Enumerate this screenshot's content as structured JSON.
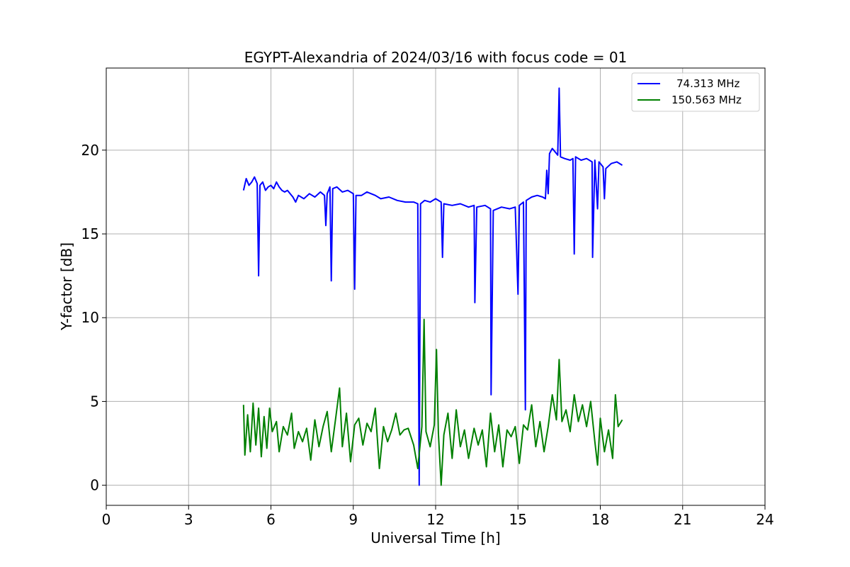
{
  "chart_data": {
    "type": "line",
    "title": "EGYPT-Alexandria of 2024/03/16 with focus code = 01",
    "xlabel": "Universal Time [h]",
    "ylabel": "Y-factor [dB]",
    "xlim": [
      0,
      24
    ],
    "ylim": [
      -1.2,
      24.9
    ],
    "xticks": [
      0,
      3,
      6,
      9,
      12,
      15,
      18,
      21,
      24
    ],
    "yticks": [
      0,
      5,
      10,
      15,
      20
    ],
    "grid": true,
    "legend_position": "top-right",
    "series": [
      {
        "name": "74.313 MHz",
        "color": "#0000ff",
        "points": [
          [
            5.0,
            17.6
          ],
          [
            5.1,
            18.3
          ],
          [
            5.2,
            17.9
          ],
          [
            5.3,
            18.1
          ],
          [
            5.4,
            18.4
          ],
          [
            5.5,
            18.0
          ],
          [
            5.55,
            12.5
          ],
          [
            5.6,
            17.9
          ],
          [
            5.7,
            18.1
          ],
          [
            5.8,
            17.6
          ],
          [
            5.9,
            17.8
          ],
          [
            6.0,
            17.9
          ],
          [
            6.1,
            17.7
          ],
          [
            6.2,
            18.1
          ],
          [
            6.3,
            17.8
          ],
          [
            6.4,
            17.6
          ],
          [
            6.5,
            17.5
          ],
          [
            6.6,
            17.6
          ],
          [
            6.7,
            17.4
          ],
          [
            6.8,
            17.2
          ],
          [
            6.9,
            16.9
          ],
          [
            7.0,
            17.3
          ],
          [
            7.2,
            17.1
          ],
          [
            7.4,
            17.4
          ],
          [
            7.6,
            17.2
          ],
          [
            7.8,
            17.5
          ],
          [
            7.95,
            17.3
          ],
          [
            8.0,
            15.5
          ],
          [
            8.05,
            17.4
          ],
          [
            8.1,
            17.6
          ],
          [
            8.15,
            17.8
          ],
          [
            8.2,
            12.2
          ],
          [
            8.25,
            17.7
          ],
          [
            8.4,
            17.8
          ],
          [
            8.6,
            17.5
          ],
          [
            8.8,
            17.6
          ],
          [
            9.0,
            17.4
          ],
          [
            9.05,
            11.7
          ],
          [
            9.1,
            17.3
          ],
          [
            9.3,
            17.3
          ],
          [
            9.5,
            17.5
          ],
          [
            9.8,
            17.3
          ],
          [
            10.0,
            17.1
          ],
          [
            10.3,
            17.2
          ],
          [
            10.6,
            17.0
          ],
          [
            10.9,
            16.9
          ],
          [
            11.2,
            16.9
          ],
          [
            11.35,
            16.8
          ],
          [
            11.4,
            0.0
          ],
          [
            11.45,
            16.8
          ],
          [
            11.6,
            17.0
          ],
          [
            11.8,
            16.9
          ],
          [
            12.0,
            17.1
          ],
          [
            12.2,
            16.9
          ],
          [
            12.25,
            13.6
          ],
          [
            12.3,
            16.8
          ],
          [
            12.6,
            16.7
          ],
          [
            12.9,
            16.8
          ],
          [
            13.2,
            16.6
          ],
          [
            13.4,
            16.7
          ],
          [
            13.43,
            10.9
          ],
          [
            13.5,
            16.6
          ],
          [
            13.8,
            16.7
          ],
          [
            14.0,
            16.5
          ],
          [
            14.02,
            5.4
          ],
          [
            14.1,
            16.4
          ],
          [
            14.4,
            16.6
          ],
          [
            14.7,
            16.5
          ],
          [
            14.9,
            16.6
          ],
          [
            15.0,
            11.4
          ],
          [
            15.05,
            16.7
          ],
          [
            15.2,
            16.9
          ],
          [
            15.27,
            4.5
          ],
          [
            15.3,
            17.0
          ],
          [
            15.5,
            17.2
          ],
          [
            15.7,
            17.3
          ],
          [
            15.9,
            17.2
          ],
          [
            16.0,
            17.1
          ],
          [
            16.05,
            18.8
          ],
          [
            16.1,
            17.4
          ],
          [
            16.15,
            19.8
          ],
          [
            16.25,
            20.1
          ],
          [
            16.35,
            19.9
          ],
          [
            16.45,
            19.7
          ],
          [
            16.5,
            23.7
          ],
          [
            16.55,
            19.6
          ],
          [
            16.7,
            19.5
          ],
          [
            16.9,
            19.4
          ],
          [
            17.0,
            19.5
          ],
          [
            17.05,
            13.8
          ],
          [
            17.1,
            19.6
          ],
          [
            17.3,
            19.4
          ],
          [
            17.5,
            19.5
          ],
          [
            17.7,
            19.3
          ],
          [
            17.72,
            13.6
          ],
          [
            17.8,
            19.4
          ],
          [
            17.9,
            16.5
          ],
          [
            17.95,
            19.3
          ],
          [
            18.1,
            19.0
          ],
          [
            18.15,
            17.1
          ],
          [
            18.2,
            18.9
          ],
          [
            18.4,
            19.2
          ],
          [
            18.6,
            19.3
          ],
          [
            18.8,
            19.1
          ]
        ]
      },
      {
        "name": "150.563 MHz",
        "color": "#008000",
        "points": [
          [
            5.0,
            4.8
          ],
          [
            5.05,
            1.8
          ],
          [
            5.15,
            4.2
          ],
          [
            5.25,
            2.0
          ],
          [
            5.35,
            4.9
          ],
          [
            5.45,
            2.4
          ],
          [
            5.55,
            4.6
          ],
          [
            5.65,
            1.7
          ],
          [
            5.75,
            4.1
          ],
          [
            5.85,
            2.2
          ],
          [
            5.95,
            4.6
          ],
          [
            6.05,
            3.2
          ],
          [
            6.2,
            3.8
          ],
          [
            6.3,
            2.0
          ],
          [
            6.45,
            3.5
          ],
          [
            6.6,
            3.0
          ],
          [
            6.75,
            4.3
          ],
          [
            6.85,
            2.2
          ],
          [
            7.0,
            3.2
          ],
          [
            7.15,
            2.6
          ],
          [
            7.3,
            3.4
          ],
          [
            7.45,
            1.5
          ],
          [
            7.6,
            3.9
          ],
          [
            7.75,
            2.3
          ],
          [
            7.9,
            3.5
          ],
          [
            8.05,
            4.4
          ],
          [
            8.2,
            2.0
          ],
          [
            8.35,
            3.9
          ],
          [
            8.5,
            5.8
          ],
          [
            8.6,
            2.3
          ],
          [
            8.75,
            4.3
          ],
          [
            8.9,
            1.4
          ],
          [
            9.05,
            3.6
          ],
          [
            9.2,
            4.0
          ],
          [
            9.35,
            2.4
          ],
          [
            9.5,
            3.7
          ],
          [
            9.65,
            3.2
          ],
          [
            9.8,
            4.6
          ],
          [
            9.95,
            1.0
          ],
          [
            10.1,
            3.5
          ],
          [
            10.25,
            2.6
          ],
          [
            10.4,
            3.3
          ],
          [
            10.55,
            4.3
          ],
          [
            10.7,
            3.0
          ],
          [
            10.85,
            3.3
          ],
          [
            11.0,
            3.4
          ],
          [
            11.2,
            2.4
          ],
          [
            11.35,
            1.0
          ],
          [
            11.5,
            3.5
          ],
          [
            11.58,
            9.9
          ],
          [
            11.65,
            3.2
          ],
          [
            11.8,
            2.3
          ],
          [
            11.95,
            3.6
          ],
          [
            12.03,
            8.1
          ],
          [
            12.1,
            3.1
          ],
          [
            12.2,
            0.0
          ],
          [
            12.3,
            3.0
          ],
          [
            12.45,
            4.3
          ],
          [
            12.6,
            1.6
          ],
          [
            12.75,
            4.5
          ],
          [
            12.9,
            2.3
          ],
          [
            13.05,
            3.3
          ],
          [
            13.2,
            1.6
          ],
          [
            13.4,
            3.4
          ],
          [
            13.55,
            2.4
          ],
          [
            13.7,
            3.3
          ],
          [
            13.85,
            1.1
          ],
          [
            14.0,
            4.3
          ],
          [
            14.15,
            2.0
          ],
          [
            14.3,
            3.6
          ],
          [
            14.45,
            1.1
          ],
          [
            14.6,
            3.3
          ],
          [
            14.75,
            2.9
          ],
          [
            14.9,
            3.5
          ],
          [
            15.05,
            1.3
          ],
          [
            15.2,
            3.6
          ],
          [
            15.35,
            3.3
          ],
          [
            15.5,
            4.8
          ],
          [
            15.65,
            2.3
          ],
          [
            15.8,
            3.8
          ],
          [
            15.95,
            2.0
          ],
          [
            16.1,
            3.5
          ],
          [
            16.25,
            5.4
          ],
          [
            16.4,
            3.9
          ],
          [
            16.5,
            7.5
          ],
          [
            16.6,
            3.8
          ],
          [
            16.75,
            4.5
          ],
          [
            16.9,
            3.2
          ],
          [
            17.05,
            5.4
          ],
          [
            17.2,
            3.8
          ],
          [
            17.35,
            4.8
          ],
          [
            17.5,
            3.5
          ],
          [
            17.65,
            5.0
          ],
          [
            17.8,
            2.6
          ],
          [
            17.9,
            1.2
          ],
          [
            18.0,
            4.0
          ],
          [
            18.15,
            2.0
          ],
          [
            18.3,
            3.3
          ],
          [
            18.45,
            1.6
          ],
          [
            18.55,
            5.4
          ],
          [
            18.65,
            3.5
          ],
          [
            18.8,
            3.9
          ]
        ]
      }
    ]
  }
}
